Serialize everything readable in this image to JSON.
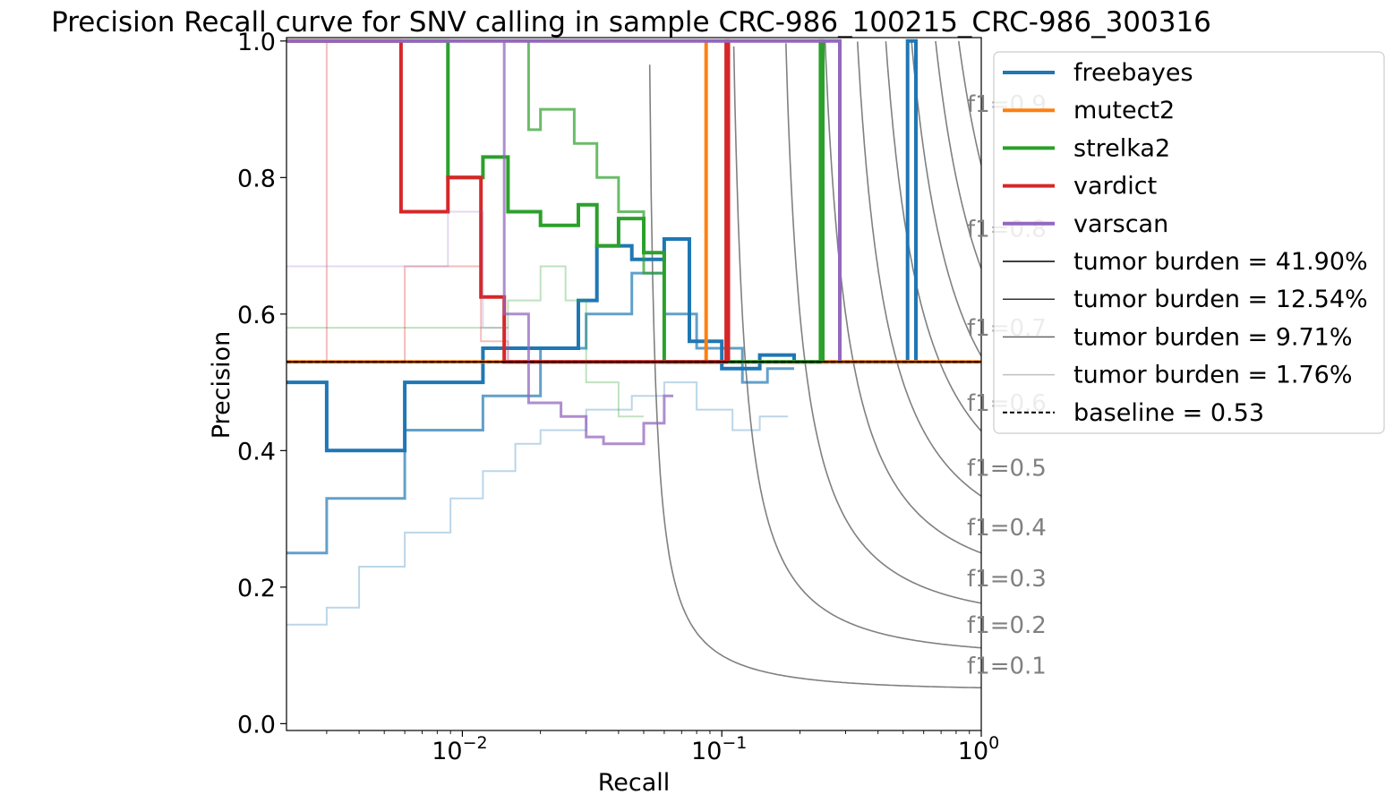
{
  "chart_data": {
    "type": "line",
    "title": "Precision Recall curve for SNV calling in sample CRC-986_100215_CRC-986_300316",
    "xlabel": "Recall",
    "ylabel": "Precision",
    "xscale": "log",
    "xlim": [
      0.0021,
      1.0
    ],
    "ylim": [
      -0.01,
      1.005
    ],
    "x_ticks": [
      {
        "value": 0.01,
        "base": "10",
        "exp": "−2"
      },
      {
        "value": 0.1,
        "base": "10",
        "exp": "−1"
      },
      {
        "value": 1,
        "base": "10",
        "exp": "0"
      }
    ],
    "y_ticks": [
      {
        "value": 0.0,
        "label": "0.0"
      },
      {
        "value": 0.2,
        "label": "0.2"
      },
      {
        "value": 0.4,
        "label": "0.4"
      },
      {
        "value": 0.6,
        "label": "0.6"
      },
      {
        "value": 0.8,
        "label": "0.8"
      },
      {
        "value": 1.0,
        "label": "1.0"
      }
    ],
    "grid": false,
    "legend_position": "outside-top-right",
    "legend": [
      {
        "label": "freebayes",
        "color": "#1f77b4",
        "style": "solid",
        "width": 4
      },
      {
        "label": "mutect2",
        "color": "#ff7f0e",
        "style": "solid",
        "width": 4
      },
      {
        "label": "strelka2",
        "color": "#2ca02c",
        "style": "solid",
        "width": 4
      },
      {
        "label": "vardict",
        "color": "#d62728",
        "style": "solid",
        "width": 4
      },
      {
        "label": "varscan",
        "color": "#9467bd",
        "style": "solid",
        "width": 4
      },
      {
        "label": "tumor burden = 41.90%",
        "color": "#000000",
        "style": "solid",
        "width": 1.5,
        "opacity": 1.0
      },
      {
        "label": "tumor burden = 12.54%",
        "color": "#000000",
        "style": "solid",
        "width": 1.5,
        "opacity": 0.8
      },
      {
        "label": "tumor burden = 9.71%",
        "color": "#000000",
        "style": "solid",
        "width": 1.5,
        "opacity": 0.6
      },
      {
        "label": "tumor burden = 1.76%",
        "color": "#000000",
        "style": "solid",
        "width": 1.5,
        "opacity": 0.25
      },
      {
        "label": "baseline = 0.53",
        "color": "#000000",
        "style": "dashed",
        "width": 2
      }
    ],
    "baseline": 0.53,
    "f1_isolines": [
      0.1,
      0.2,
      0.3,
      0.4,
      0.5,
      0.6,
      0.7,
      0.8,
      0.9
    ],
    "f1_labels": [
      {
        "f": 0.1,
        "text": "f1=0.1",
        "y": 0.085
      },
      {
        "f": 0.2,
        "text": "f1=0.2",
        "y": 0.145
      },
      {
        "f": 0.3,
        "text": "f1=0.3",
        "y": 0.213
      },
      {
        "f": 0.4,
        "text": "f1=0.4",
        "y": 0.288
      },
      {
        "f": 0.5,
        "text": "f1=0.5",
        "y": 0.375
      },
      {
        "f": 0.6,
        "text": "f1=0.6",
        "y": 0.47
      },
      {
        "f": 0.7,
        "text": "f1=0.7",
        "y": 0.58
      },
      {
        "f": 0.8,
        "text": "f1=0.8",
        "y": 0.725
      },
      {
        "f": 0.9,
        "text": "f1=0.9",
        "y": 0.908
      }
    ],
    "series": [
      {
        "name": "freebayes",
        "color": "#1f77b4",
        "opacity": 1.0,
        "width": 4,
        "x": [
          0.0021,
          0.003,
          0.003,
          0.006,
          0.006,
          0.012,
          0.012,
          0.028,
          0.028,
          0.033,
          0.033,
          0.045,
          0.045,
          0.06,
          0.06,
          0.075,
          0.075,
          0.1,
          0.1,
          0.14,
          0.14,
          0.19,
          0.19,
          0.52,
          0.52,
          0.56,
          0.56
        ],
        "y": [
          0.5,
          0.5,
          0.4,
          0.4,
          0.5,
          0.5,
          0.55,
          0.55,
          0.62,
          0.62,
          0.7,
          0.7,
          0.68,
          0.68,
          0.71,
          0.71,
          0.56,
          0.56,
          0.52,
          0.52,
          0.54,
          0.54,
          0.53,
          0.53,
          1.0,
          1.0,
          0.53
        ]
      },
      {
        "name": "freebayes",
        "color": "#1f77b4",
        "opacity": 0.7,
        "width": 3,
        "x": [
          0.0021,
          0.003,
          0.003,
          0.006,
          0.006,
          0.012,
          0.012,
          0.02,
          0.02,
          0.03,
          0.03,
          0.045,
          0.045,
          0.06,
          0.06,
          0.08,
          0.08,
          0.12,
          0.12,
          0.15,
          0.15,
          0.19
        ],
        "y": [
          0.25,
          0.25,
          0.33,
          0.33,
          0.43,
          0.43,
          0.48,
          0.48,
          0.55,
          0.55,
          0.6,
          0.6,
          0.66,
          0.66,
          0.6,
          0.6,
          0.55,
          0.55,
          0.5,
          0.5,
          0.52,
          0.52
        ]
      },
      {
        "name": "freebayes",
        "color": "#1f77b4",
        "opacity": 0.3,
        "width": 2,
        "x": [
          0.0021,
          0.003,
          0.003,
          0.004,
          0.004,
          0.006,
          0.006,
          0.009,
          0.009,
          0.012,
          0.012,
          0.016,
          0.016,
          0.02,
          0.02,
          0.03,
          0.03,
          0.045,
          0.045,
          0.06,
          0.06,
          0.08,
          0.08,
          0.11,
          0.11,
          0.14,
          0.14,
          0.18
        ],
        "y": [
          0.145,
          0.145,
          0.17,
          0.17,
          0.23,
          0.23,
          0.28,
          0.28,
          0.33,
          0.33,
          0.37,
          0.37,
          0.41,
          0.41,
          0.43,
          0.43,
          0.46,
          0.46,
          0.48,
          0.48,
          0.5,
          0.5,
          0.46,
          0.46,
          0.43,
          0.43,
          0.45,
          0.45
        ]
      },
      {
        "name": "mutect2",
        "color": "#ff7f0e",
        "opacity": 1.0,
        "width": 4,
        "x": [
          0.0021,
          0.087,
          0.087,
          0.087,
          0.087,
          1.0
        ],
        "y": [
          0.53,
          0.53,
          1.0,
          1.0,
          0.53,
          0.53
        ]
      },
      {
        "name": "strelka2",
        "color": "#2ca02c",
        "opacity": 1.0,
        "width": 4,
        "x": [
          0.0021,
          0.0088,
          0.0088,
          0.012,
          0.012,
          0.015,
          0.015,
          0.02,
          0.02,
          0.028,
          0.028,
          0.033,
          0.033,
          0.04,
          0.04,
          0.05,
          0.05,
          0.06,
          0.06,
          0.24,
          0.24,
          0.245,
          0.245
        ],
        "y": [
          1.0,
          1.0,
          0.8,
          0.8,
          0.83,
          0.83,
          0.75,
          0.75,
          0.73,
          0.73,
          0.76,
          0.76,
          0.7,
          0.7,
          0.74,
          0.74,
          0.69,
          0.69,
          0.53,
          0.53,
          1.0,
          1.0,
          0.53
        ]
      },
      {
        "name": "strelka2",
        "color": "#2ca02c",
        "opacity": 0.7,
        "width": 3,
        "x": [
          0.0021,
          0.0088,
          0.0088,
          0.012,
          0.012,
          0.018,
          0.018,
          0.02,
          0.02,
          0.027,
          0.027,
          0.033,
          0.033,
          0.04,
          0.04,
          0.05,
          0.05,
          0.06
        ],
        "y": [
          1.0,
          1.0,
          1.0,
          1.0,
          1.0,
          1.0,
          0.87,
          0.87,
          0.9,
          0.9,
          0.85,
          0.85,
          0.8,
          0.8,
          0.75,
          0.75,
          0.66,
          0.66
        ]
      },
      {
        "name": "strelka2",
        "color": "#2ca02c",
        "opacity": 0.3,
        "width": 2,
        "x": [
          0.0021,
          0.015,
          0.015,
          0.02,
          0.02,
          0.025,
          0.025,
          0.03,
          0.03,
          0.04,
          0.04,
          0.05
        ],
        "y": [
          0.58,
          0.58,
          0.62,
          0.62,
          0.67,
          0.67,
          0.62,
          0.62,
          0.5,
          0.5,
          0.45,
          0.45
        ]
      },
      {
        "name": "vardict",
        "color": "#d62728",
        "opacity": 1.0,
        "width": 4,
        "x": [
          0.0021,
          0.0058,
          0.0058,
          0.0088,
          0.0088,
          0.0118,
          0.0118,
          0.0145,
          0.0145,
          0.104,
          0.104,
          0.106,
          0.106
        ],
        "y": [
          1.0,
          1.0,
          0.75,
          0.75,
          0.8,
          0.8,
          0.625,
          0.625,
          0.53,
          0.53,
          1.0,
          1.0,
          0.53
        ]
      },
      {
        "name": "vardict",
        "color": "#d62728",
        "opacity": 0.3,
        "width": 2,
        "x": [
          0.0021,
          0.003,
          0.003,
          0.006,
          0.006,
          0.0118,
          0.0118,
          0.015,
          0.015
        ],
        "y": [
          1.0,
          1.0,
          0.53,
          0.53,
          0.67,
          0.67,
          0.56,
          0.56,
          0.53
        ]
      },
      {
        "name": "varscan",
        "color": "#9467bd",
        "opacity": 1.0,
        "width": 4,
        "x": [
          0.0021,
          0.0145,
          0.0145,
          0.275,
          0.275,
          0.285,
          0.285
        ],
        "y": [
          1.0,
          1.0,
          1.0,
          1.0,
          1.0,
          1.0,
          0.53
        ]
      },
      {
        "name": "varscan",
        "color": "#9467bd",
        "opacity": 0.75,
        "width": 3,
        "x": [
          0.0145,
          0.0145,
          0.018,
          0.018,
          0.024,
          0.024,
          0.03,
          0.03,
          0.035,
          0.035,
          0.05,
          0.05,
          0.06,
          0.06,
          0.065
        ],
        "y": [
          1.0,
          0.6,
          0.6,
          0.47,
          0.47,
          0.45,
          0.45,
          0.42,
          0.42,
          0.41,
          0.41,
          0.44,
          0.44,
          0.48,
          0.48
        ]
      },
      {
        "name": "varscan",
        "color": "#9467bd",
        "opacity": 0.25,
        "width": 2,
        "x": [
          0.0021,
          0.0088,
          0.0088,
          0.012,
          0.012,
          0.015,
          0.015
        ],
        "y": [
          0.67,
          0.67,
          0.75,
          0.75,
          0.58,
          0.58,
          0.53
        ]
      }
    ]
  }
}
